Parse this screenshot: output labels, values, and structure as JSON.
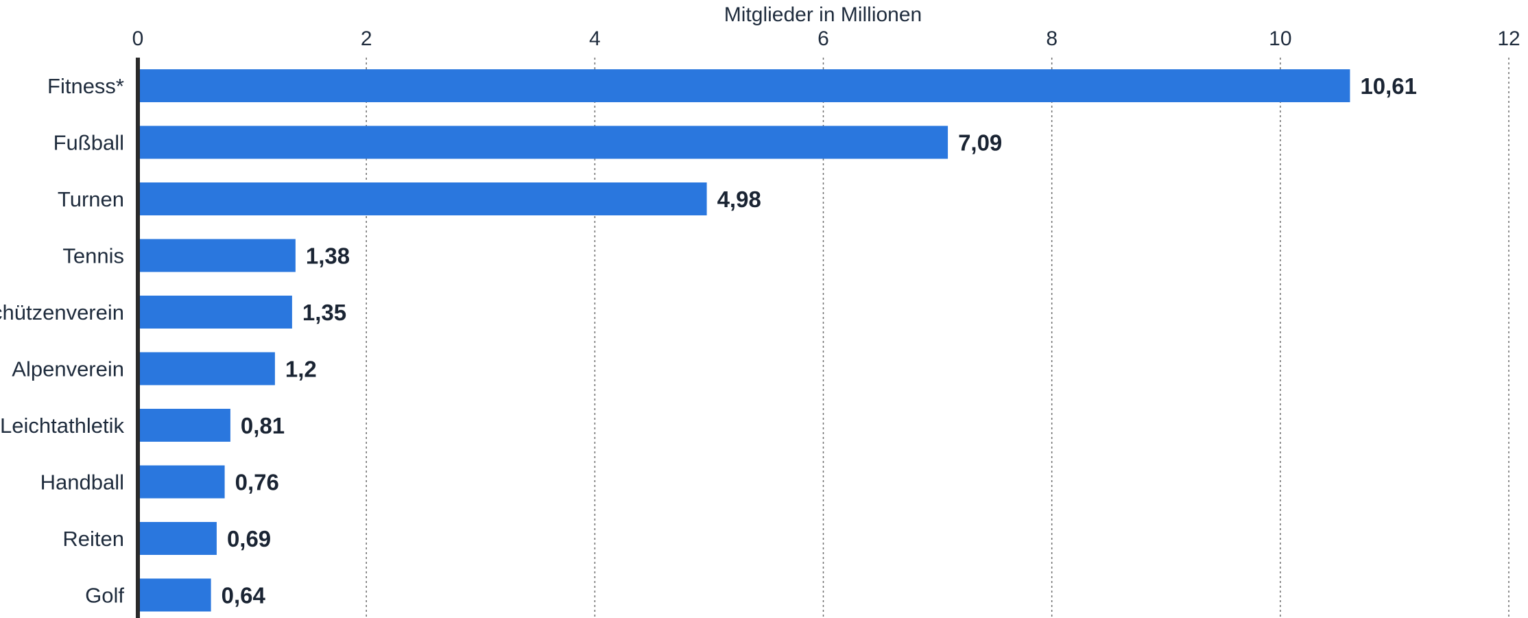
{
  "chart_data": {
    "type": "bar",
    "orientation": "horizontal",
    "xlabel": "Mitglieder in Millionen",
    "xlim": [
      0,
      12
    ],
    "xticks": [
      0,
      2,
      4,
      6,
      8,
      10,
      12
    ],
    "xtick_labels": [
      "0",
      "2",
      "4",
      "6",
      "8",
      "10",
      "12"
    ],
    "categories": [
      "Fitness*",
      "Fußball",
      "Turnen",
      "Tennis",
      "Schützenverein",
      "Alpenverein",
      "Leichtathletik",
      "Handball",
      "Reiten",
      "Golf"
    ],
    "values": [
      10.61,
      7.09,
      4.98,
      1.38,
      1.35,
      1.2,
      0.81,
      0.76,
      0.69,
      0.64
    ],
    "value_labels": [
      "10,61",
      "7,09",
      "4,98",
      "1,38",
      "1,35",
      "1,2",
      "0,81",
      "0,76",
      "0,69",
      "0,64"
    ],
    "grid": true,
    "bar_color": "#2a77de"
  }
}
